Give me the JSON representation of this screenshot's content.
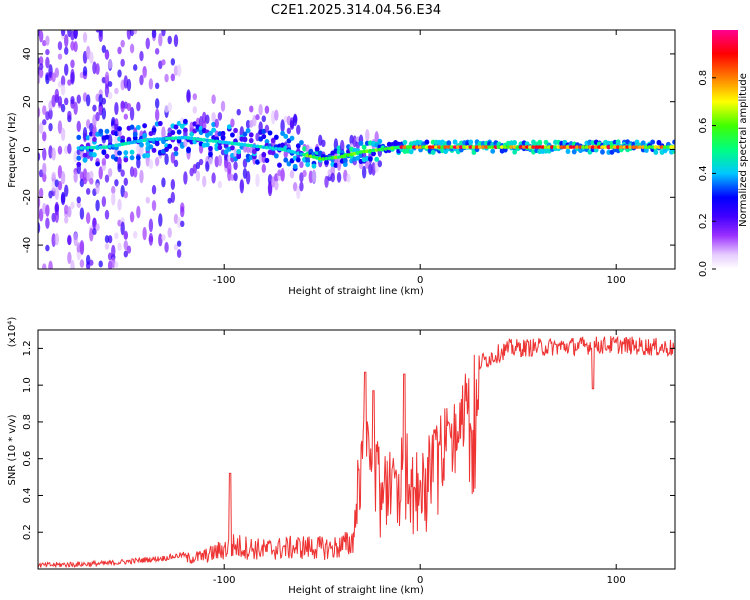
{
  "chart_data": [
    {
      "type": "heatmap",
      "title": "C2E1.2025.314.04.56.E34",
      "xlabel": "Height of straight line (km)",
      "ylabel": "Frequency (Hz)",
      "xlim": [
        -195,
        130
      ],
      "ylim": [
        -50,
        50
      ],
      "xticks": [
        -100,
        0,
        100
      ],
      "yticks": [
        -40,
        -20,
        0,
        20,
        40
      ],
      "colorbar": {
        "label": "Normalized spectral amplitude",
        "range": [
          0,
          1
        ],
        "ticks": [
          0.0,
          0.2,
          0.4,
          0.6,
          0.8
        ],
        "colors": [
          "#ffffff",
          "#d9b3ff",
          "#7a00ff",
          "#0000ff",
          "#00e0ff",
          "#00ff40",
          "#ffff00",
          "#ff8000",
          "#ff0000",
          "#ff0090"
        ]
      },
      "ridge_center_hz": [
        {
          "x": -195,
          "f": 0
        },
        {
          "x": -160,
          "f": 1
        },
        {
          "x": -140,
          "f": 4
        },
        {
          "x": -120,
          "f": 5
        },
        {
          "x": -100,
          "f": 3
        },
        {
          "x": -80,
          "f": 1
        },
        {
          "x": -70,
          "f": 0
        },
        {
          "x": -60,
          "f": -2
        },
        {
          "x": -50,
          "f": -4
        },
        {
          "x": -40,
          "f": -3
        },
        {
          "x": -30,
          "f": -1
        },
        {
          "x": -20,
          "f": 0
        },
        {
          "x": -10,
          "f": 1
        },
        {
          "x": 0,
          "f": 1
        },
        {
          "x": 50,
          "f": 1
        },
        {
          "x": 100,
          "f": 1
        },
        {
          "x": 130,
          "f": 1
        }
      ]
    },
    {
      "type": "line",
      "title": "",
      "xlabel": "Height of straight line (km)",
      "ylabel": "SNR (10 * v/v)",
      "yscale_label": "(x10⁴)",
      "xlim": [
        -195,
        130
      ],
      "ylim": [
        0,
        1.3
      ],
      "xticks": [
        -100,
        0,
        100
      ],
      "yticks": [
        0.2,
        0.4,
        0.6,
        0.8,
        1.0,
        1.2
      ],
      "series": [
        {
          "name": "SNR",
          "color": "#ee3333",
          "envelope": [
            {
              "x": -195,
              "y": 0.02
            },
            {
              "x": -160,
              "y": 0.03
            },
            {
              "x": -130,
              "y": 0.06
            },
            {
              "x": -110,
              "y": 0.1
            },
            {
              "x": -95,
              "y": 0.18
            },
            {
              "x": -80,
              "y": 0.15
            },
            {
              "x": -60,
              "y": 0.17
            },
            {
              "x": -45,
              "y": 0.16
            },
            {
              "x": -35,
              "y": 0.2
            },
            {
              "x": -28,
              "y": 0.85
            },
            {
              "x": -20,
              "y": 0.6
            },
            {
              "x": -10,
              "y": 0.62
            },
            {
              "x": 0,
              "y": 0.6
            },
            {
              "x": 10,
              "y": 0.72
            },
            {
              "x": 20,
              "y": 0.95
            },
            {
              "x": 30,
              "y": 1.12
            },
            {
              "x": 45,
              "y": 1.2
            },
            {
              "x": 70,
              "y": 1.21
            },
            {
              "x": 100,
              "y": 1.22
            },
            {
              "x": 130,
              "y": 1.2
            }
          ],
          "spikes": [
            {
              "x": -97,
              "y": 0.52
            },
            {
              "x": -28,
              "y": 1.07
            },
            {
              "x": -24,
              "y": 0.97
            },
            {
              "x": -8,
              "y": 1.06
            },
            {
              "x": 88,
              "y": 0.98
            }
          ]
        }
      ]
    }
  ]
}
